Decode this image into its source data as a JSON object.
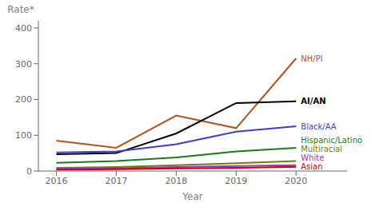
{
  "chart_data": {
    "type": "line",
    "x": [
      2016,
      2017,
      2018,
      2019,
      2020
    ],
    "xlabel": "Year",
    "ylabel": "Rate*",
    "xlim": [
      2015.7,
      2020.85
    ],
    "xticks": [
      2016,
      2017,
      2018,
      2019,
      2020
    ],
    "ylim": [
      0,
      420
    ],
    "yticks": [
      0,
      100,
      200,
      300,
      400
    ],
    "grid": false,
    "series": [
      {
        "name": "NH/PI",
        "color": "#b5521b",
        "values": [
          85,
          65,
          155,
          120,
          315
        ]
      },
      {
        "name": "AI/AN",
        "color": "#000000",
        "values": [
          47,
          50,
          105,
          190,
          195
        ]
      },
      {
        "name": "Black/AA",
        "color": "#3d3dcc",
        "values": [
          52,
          55,
          75,
          110,
          125
        ]
      },
      {
        "name": "Hispanic/Latino",
        "color": "#1a7a1a",
        "values": [
          23,
          28,
          38,
          55,
          65
        ]
      },
      {
        "name": "Multiracial",
        "color": "#7a7a00",
        "values": [
          9,
          11,
          16,
          22,
          28
        ]
      },
      {
        "name": "White",
        "color": "#9933cc",
        "values": [
          6,
          8,
          11,
          14,
          16
        ]
      },
      {
        "name": "Asian",
        "color": "#cc0000",
        "values": [
          4,
          5,
          7,
          9,
          12
        ]
      }
    ]
  }
}
